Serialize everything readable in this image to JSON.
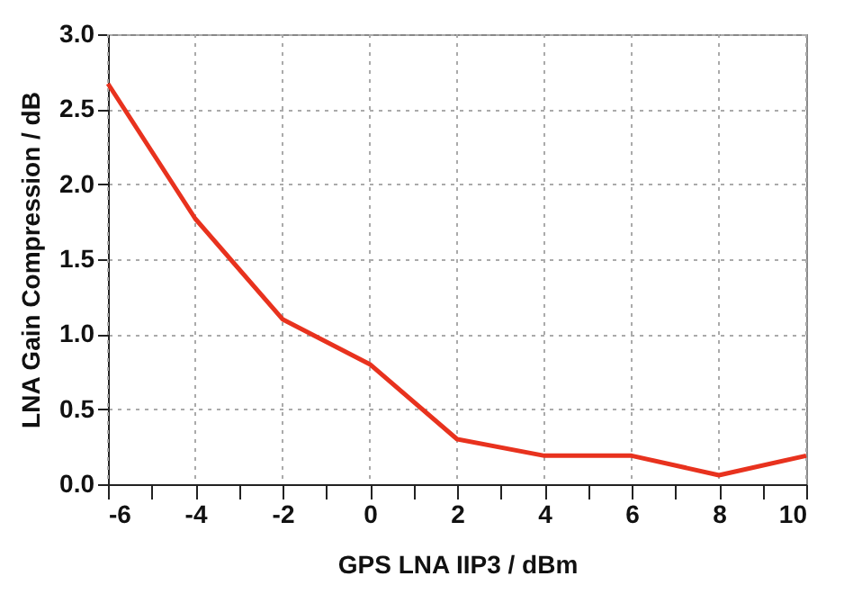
{
  "chart_data": {
    "type": "line",
    "xlabel": "GPS LNA IIP3 / dBm",
    "ylabel": "LNA Gain Compression / dB",
    "x": [
      -6,
      -4,
      -2,
      0,
      2,
      4,
      6,
      8,
      10
    ],
    "series": [
      {
        "color": "#e8321e",
        "values": [
          2.67,
          1.77,
          1.1,
          0.8,
          0.3,
          0.19,
          0.19,
          0.06,
          0.19
        ]
      }
    ],
    "xlim": [
      -6,
      10
    ],
    "ylim": [
      0,
      3
    ],
    "xticks": [
      -6,
      {
        "value": -5,
        "label": null
      },
      -4,
      {
        "value": -3,
        "label": null
      },
      -2,
      {
        "value": -1,
        "label": null
      },
      0,
      {
        "value": 1,
        "label": null
      },
      2,
      {
        "value": 3,
        "label": null
      },
      4,
      {
        "value": 5,
        "label": null
      },
      6,
      {
        "value": 7,
        "label": null
      },
      8,
      {
        "value": 9,
        "label": null
      },
      10
    ],
    "yticks": [
      {
        "value": 0,
        "label": "0.0"
      },
      0.5,
      {
        "value": 1,
        "label": "1.0"
      },
      1.5,
      {
        "value": 2,
        "label": "2.0"
      },
      2.5,
      {
        "value": 3,
        "label": "3.0"
      }
    ],
    "grid": true,
    "marker": "none",
    "line_style": "solid"
  }
}
